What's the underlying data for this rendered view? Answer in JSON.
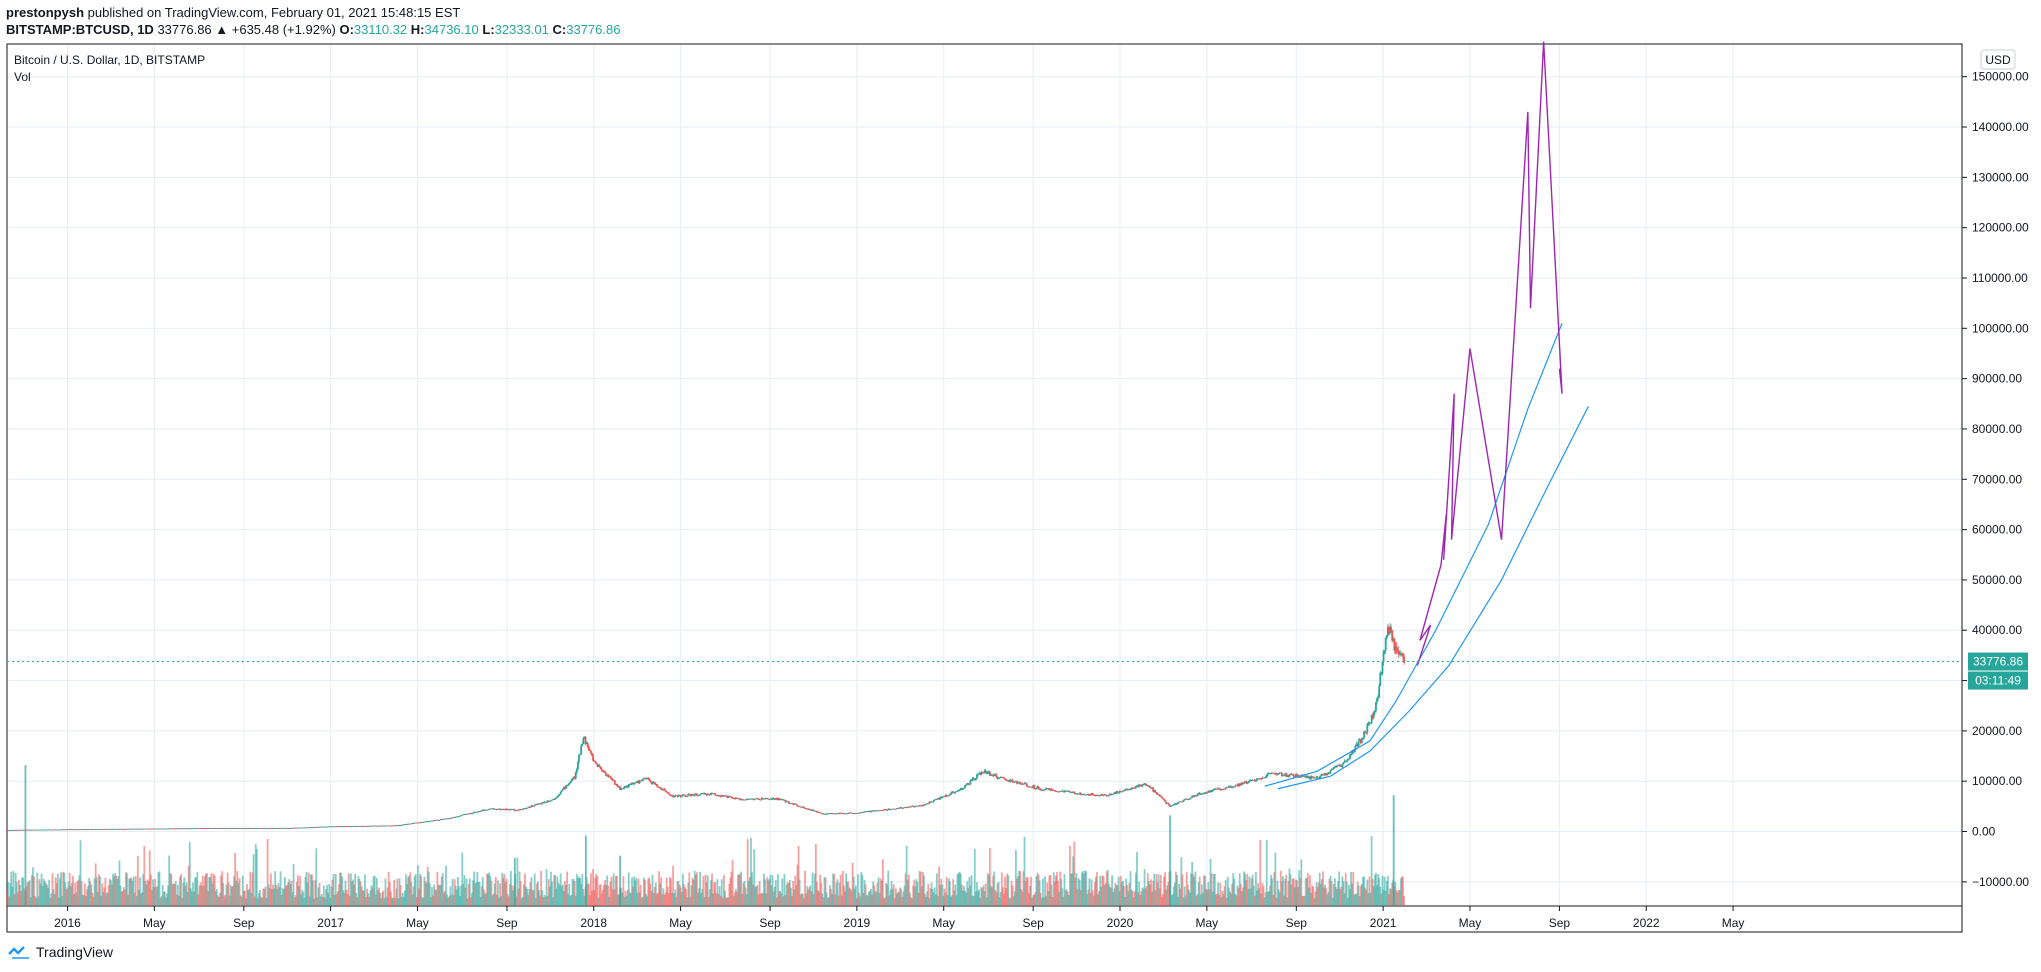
{
  "header": {
    "author": "prestonpysh",
    "published_text": "published on TradingView.com, February 01, 2021 15:48:15 EST",
    "symbol": "BITSTAMP:BTCUSD, 1D",
    "change": "33776.86 ▲ +635.48 (+1.92%)",
    "o_label": "O:",
    "o_value": "33110.32",
    "h_label": "H:",
    "h_value": "34736.10",
    "l_label": "L:",
    "l_value": "32333.01",
    "c_label": "C:",
    "c_value": "33776.86"
  },
  "brand": {
    "label": "TradingView"
  },
  "colors": {
    "up": "#26a69a",
    "down": "#ef5350",
    "fan": "#2196f3",
    "projection": "#9c27b0",
    "grid": "#e6eef5"
  },
  "chart_data": {
    "type": "candlestick",
    "title": "Bitcoin / U.S. Dollar, 1D, BITSTAMP",
    "volume_label": "Vol",
    "currency_label": "USD",
    "x_tick_labels": [
      "2016",
      "May",
      "Sep",
      "2017",
      "May",
      "Sep",
      "2018",
      "May",
      "Sep",
      "2019",
      "May",
      "Sep",
      "2020",
      "May",
      "Sep",
      "2021",
      "May",
      "Sep",
      "2022",
      "May"
    ],
    "x_tick_dates": [
      2016.0,
      2016.33,
      2016.67,
      2017.0,
      2017.33,
      2017.67,
      2018.0,
      2018.33,
      2018.67,
      2019.0,
      2019.33,
      2019.67,
      2020.0,
      2020.33,
      2020.67,
      2021.0,
      2021.33,
      2021.67,
      2022.0,
      2022.33
    ],
    "y_ticks": [
      -10000,
      0,
      10000,
      20000,
      30000,
      40000,
      50000,
      60000,
      70000,
      80000,
      90000,
      100000,
      110000,
      120000,
      130000,
      140000,
      150000
    ],
    "y_tick_labels": [
      "−10000.00",
      "0.00",
      "10000.00",
      "20000.00",
      "30000.00",
      "40000.00",
      "50000.00",
      "60000.00",
      "70000.00",
      "80000.00",
      "90000.00",
      "100000.00",
      "110000.00",
      "120000.00",
      "130000.00",
      "140000.00",
      "150000.00"
    ],
    "ylim": [
      -14800,
      156500
    ],
    "xlim": [
      2015.77,
      2023.2
    ],
    "last_price": 33776.86,
    "last_price_label": "33776.86",
    "countdown_label": "03:11:49",
    "price_path": [
      [
        2015.77,
        300
      ],
      [
        2016.0,
        430
      ],
      [
        2016.5,
        650
      ],
      [
        2016.85,
        700
      ],
      [
        2017.0,
        1000
      ],
      [
        2017.25,
        1200
      ],
      [
        2017.45,
        2600
      ],
      [
        2017.6,
        4500
      ],
      [
        2017.72,
        4300
      ],
      [
        2017.85,
        6500
      ],
      [
        2017.93,
        11000
      ],
      [
        2017.96,
        19000
      ],
      [
        2018.0,
        14000
      ],
      [
        2018.1,
        8500
      ],
      [
        2018.2,
        10500
      ],
      [
        2018.3,
        7000
      ],
      [
        2018.45,
        7500
      ],
      [
        2018.55,
        6400
      ],
      [
        2018.7,
        6500
      ],
      [
        2018.87,
        3500
      ],
      [
        2019.0,
        3700
      ],
      [
        2019.25,
        5200
      ],
      [
        2019.4,
        8500
      ],
      [
        2019.48,
        12000
      ],
      [
        2019.55,
        10500
      ],
      [
        2019.7,
        8500
      ],
      [
        2019.85,
        7500
      ],
      [
        2019.95,
        7200
      ],
      [
        2020.1,
        9500
      ],
      [
        2020.19,
        5000
      ],
      [
        2020.3,
        7500
      ],
      [
        2020.45,
        9300
      ],
      [
        2020.58,
        11500
      ],
      [
        2020.75,
        10600
      ],
      [
        2020.85,
        13500
      ],
      [
        2020.92,
        18500
      ],
      [
        2020.97,
        24000
      ],
      [
        2021.02,
        41000
      ],
      [
        2021.05,
        35000
      ],
      [
        2021.08,
        33777
      ]
    ],
    "volume_spikes": [
      [
        2015.84,
        28000
      ],
      [
        2017.7,
        9500
      ],
      [
        2017.97,
        14000
      ],
      [
        2018.1,
        10000
      ],
      [
        2020.19,
        18000
      ],
      [
        2021.04,
        22000
      ]
    ],
    "projection_path": [
      [
        2021.13,
        33000
      ],
      [
        2021.18,
        41000
      ],
      [
        2021.14,
        38000
      ],
      [
        2021.22,
        53000
      ],
      [
        2021.24,
        63000
      ],
      [
        2021.23,
        54000
      ],
      [
        2021.27,
        87000
      ],
      [
        2021.26,
        58000
      ],
      [
        2021.33,
        96000
      ],
      [
        2021.45,
        58000
      ],
      [
        2021.55,
        143000
      ],
      [
        2021.56,
        104000
      ],
      [
        2021.61,
        157000
      ],
      [
        2021.68,
        87000
      ],
      [
        2021.67,
        92000
      ]
    ],
    "fan_lines": [
      [
        [
          2020.55,
          9000
        ],
        [
          2020.75,
          12000
        ],
        [
          2020.95,
          18000
        ],
        [
          2021.05,
          26000
        ],
        [
          2021.2,
          40000
        ],
        [
          2021.4,
          61000
        ],
        [
          2021.55,
          84000
        ],
        [
          2021.68,
          101000
        ]
      ],
      [
        [
          2020.6,
          8500
        ],
        [
          2020.8,
          11000
        ],
        [
          2020.95,
          16000
        ],
        [
          2021.1,
          24000
        ],
        [
          2021.25,
          33000
        ],
        [
          2021.45,
          50000
        ],
        [
          2021.62,
          68000
        ],
        [
          2021.78,
          84500
        ]
      ]
    ]
  }
}
